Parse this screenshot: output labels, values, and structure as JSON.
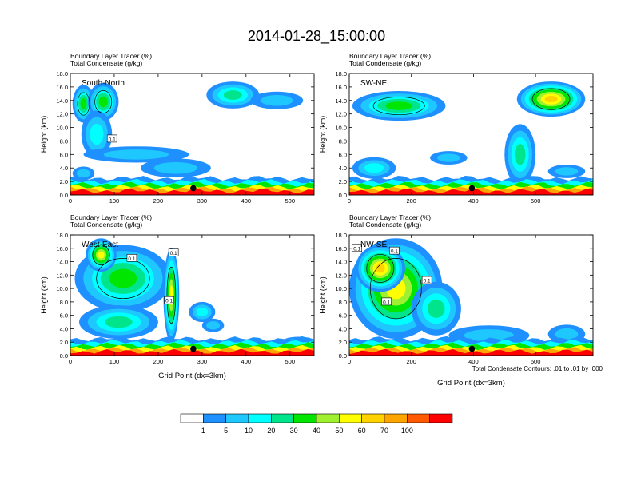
{
  "figure": {
    "title": "2014-01-28_15:00:00",
    "footer_note": "Total Condensate Contours: .01 to .01 by .000"
  },
  "colorbar": {
    "colors": [
      "#ffffff",
      "#1e90ff",
      "#1ec8ff",
      "#00ffff",
      "#00e58c",
      "#00e600",
      "#a0f032",
      "#ffff00",
      "#ffd200",
      "#ffa500",
      "#ff5a00",
      "#ff0000"
    ],
    "labels": [
      "1",
      "5",
      "10",
      "20",
      "30",
      "40",
      "50",
      "60",
      "70",
      "100"
    ]
  },
  "chart_data": [
    {
      "type": "heatmap",
      "panel_label": "South-North",
      "subtitle_lines": [
        "Boundary Layer Tracer   (%)",
        "Total Condensate   (g/kg)"
      ],
      "ylabel": "Height (km)",
      "xlabel": "",
      "xlim": [
        0,
        555
      ],
      "ylim": [
        0,
        18
      ],
      "xticks": [
        0,
        100,
        200,
        300,
        400,
        500
      ],
      "yticks": [
        "0.0",
        "2.0",
        "4.0",
        "6.0",
        "8.0",
        "10.0",
        "12.0",
        "14.0",
        "16.0",
        "18.0"
      ],
      "marker": {
        "x": 280,
        "y": 1.0
      },
      "contour_labels": [
        {
          "text": "0.1",
          "x": 95,
          "y": 8.3
        }
      ],
      "regions": [
        {
          "cx": 30,
          "cy": 13.5,
          "rx": 25,
          "ry": 2.8,
          "level": 5
        },
        {
          "cx": 75,
          "cy": 13.8,
          "rx": 35,
          "ry": 2.8,
          "level": 5
        },
        {
          "cx": 60,
          "cy": 9.0,
          "rx": 35,
          "ry": 3.5,
          "level": 3
        },
        {
          "cx": 150,
          "cy": 6.0,
          "rx": 120,
          "ry": 1.2,
          "level": 2
        },
        {
          "cx": 370,
          "cy": 14.8,
          "rx": 60,
          "ry": 2.0,
          "level": 4
        },
        {
          "cx": 470,
          "cy": 14.0,
          "rx": 60,
          "ry": 1.3,
          "level": 2
        },
        {
          "cx": 240,
          "cy": 4.0,
          "rx": 80,
          "ry": 1.4,
          "level": 2
        },
        {
          "cx": 30,
          "cy": 3.2,
          "rx": 25,
          "ry": 1.0,
          "level": 2
        }
      ]
    },
    {
      "type": "heatmap",
      "panel_label": "SW-NE",
      "subtitle_lines": [
        "Boundary Layer Tracer   (%)",
        "Total Condensate   (g/kg)"
      ],
      "ylabel": "Height (km)",
      "xlabel": "",
      "xlim": [
        0,
        785
      ],
      "ylim": [
        0,
        18
      ],
      "xticks": [
        0,
        200,
        400,
        600
      ],
      "yticks": [
        "0.0",
        "2.0",
        "4.0",
        "6.0",
        "8.0",
        "10.0",
        "12.0",
        "14.0",
        "16.0",
        "18.0"
      ],
      "marker": {
        "x": 395,
        "y": 1.0
      },
      "contour_labels": [],
      "regions": [
        {
          "cx": 160,
          "cy": 13.2,
          "rx": 150,
          "ry": 2.2,
          "level": 5
        },
        {
          "cx": 650,
          "cy": 14.2,
          "rx": 110,
          "ry": 2.6,
          "level": 8
        },
        {
          "cx": 550,
          "cy": 6.0,
          "rx": 50,
          "ry": 4.5,
          "level": 4
        },
        {
          "cx": 80,
          "cy": 4.0,
          "rx": 70,
          "ry": 1.6,
          "level": 3
        },
        {
          "cx": 320,
          "cy": 5.5,
          "rx": 60,
          "ry": 1.0,
          "level": 2
        },
        {
          "cx": 700,
          "cy": 3.5,
          "rx": 60,
          "ry": 1.0,
          "level": 2
        }
      ]
    },
    {
      "type": "heatmap",
      "panel_label": "West-East",
      "subtitle_lines": [
        "Boundary Layer Tracer   (%)",
        "Total Condensate   (g/kg)"
      ],
      "ylabel": "Height (km)",
      "xlabel": "Grid Point (dx=3km)",
      "xlim": [
        0,
        555
      ],
      "ylim": [
        0,
        18
      ],
      "xticks": [
        0,
        100,
        200,
        300,
        400,
        500
      ],
      "yticks": [
        "0.0",
        "2.0",
        "4.0",
        "6.0",
        "8.0",
        "10.0",
        "12.0",
        "14.0",
        "16.0",
        "18.0"
      ],
      "marker": {
        "x": 280,
        "y": 1.0
      },
      "contour_labels": [
        {
          "text": "0.1",
          "x": 140,
          "y": 14.5
        },
        {
          "text": "0.1",
          "x": 235,
          "y": 15.3
        },
        {
          "text": "0.1",
          "x": 225,
          "y": 8.2
        }
      ],
      "regions": [
        {
          "cx": 120,
          "cy": 11.5,
          "rx": 110,
          "ry": 5.0,
          "level": 5
        },
        {
          "cx": 70,
          "cy": 15.0,
          "rx": 35,
          "ry": 2.5,
          "level": 7
        },
        {
          "cx": 230,
          "cy": 9.0,
          "rx": 18,
          "ry": 7.0,
          "level": 7
        },
        {
          "cx": 110,
          "cy": 5.0,
          "rx": 90,
          "ry": 2.5,
          "level": 4
        },
        {
          "cx": 300,
          "cy": 6.5,
          "rx": 30,
          "ry": 1.5,
          "level": 3
        },
        {
          "cx": 325,
          "cy": 4.5,
          "rx": 25,
          "ry": 1.0,
          "level": 2
        },
        {
          "cx": 520,
          "cy": 2.0,
          "rx": 40,
          "ry": 0.8,
          "level": 3
        }
      ]
    },
    {
      "type": "heatmap",
      "panel_label": "NW-SE",
      "subtitle_lines": [
        "Boundary Layer Tracer   (%)",
        "Total Condensate   (g/kg)"
      ],
      "ylabel": "Height (km)",
      "xlabel": "Grid Point (dx=3km)",
      "xlim": [
        0,
        785
      ],
      "ylim": [
        0,
        18
      ],
      "xticks": [
        0,
        200,
        400,
        600
      ],
      "yticks": [
        "0.0",
        "2.0",
        "4.0",
        "6.0",
        "8.0",
        "10.0",
        "12.0",
        "14.0",
        "16.0",
        "18.0"
      ],
      "marker": {
        "x": 395,
        "y": 1.0
      },
      "contour_labels": [
        {
          "text": "0.1",
          "x": 25,
          "y": 16.0
        },
        {
          "text": "0.1",
          "x": 145,
          "y": 15.6
        },
        {
          "text": "0.1",
          "x": 250,
          "y": 11.2
        },
        {
          "text": "0.1",
          "x": 120,
          "y": 8.0
        }
      ],
      "regions": [
        {
          "cx": 150,
          "cy": 10.0,
          "rx": 150,
          "ry": 7.5,
          "level": 7
        },
        {
          "cx": 100,
          "cy": 13.0,
          "rx": 80,
          "ry": 3.5,
          "level": 8
        },
        {
          "cx": 280,
          "cy": 7.0,
          "rx": 80,
          "ry": 4.0,
          "level": 4
        },
        {
          "cx": 450,
          "cy": 3.0,
          "rx": 130,
          "ry": 1.5,
          "level": 2
        },
        {
          "cx": 700,
          "cy": 3.2,
          "rx": 60,
          "ry": 1.4,
          "level": 2
        }
      ]
    }
  ]
}
